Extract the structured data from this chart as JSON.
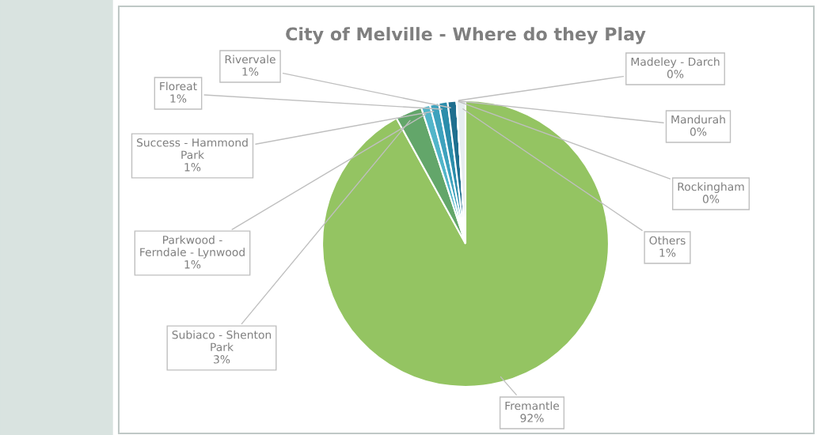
{
  "chart_data": {
    "type": "pie",
    "title": "City of Melville - Where do they Play",
    "categories": [
      "Fremantle",
      "Subiaco - Shenton Park",
      "Parkwood - Ferndale - Lynwood",
      "Success - Hammond Park",
      "Floreat",
      "Rivervale",
      "Madeley - Darch",
      "Mandurah",
      "Rockingham",
      "Others"
    ],
    "values": [
      92,
      3,
      1,
      1,
      1,
      1,
      0,
      0,
      0,
      1
    ],
    "value_labels": [
      "92%",
      "3%",
      "1%",
      "1%",
      "1%",
      "1%",
      "0%",
      "0%",
      "0%",
      "1%"
    ],
    "colors": [
      "#94c462",
      "#63a66a",
      "#52b5c9",
      "#3ea2bd",
      "#2b8dab",
      "#1f6f8f",
      "#1b5a7a",
      "#244e6e",
      "#2e4a63",
      "#e6edf0"
    ],
    "legend": false
  }
}
